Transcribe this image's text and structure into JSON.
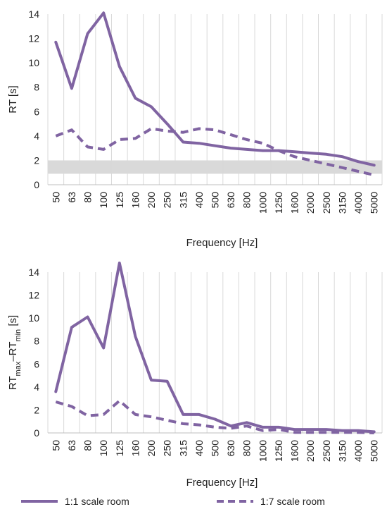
{
  "colors": {
    "series": "#8064a2",
    "band": "#d9d9d9",
    "grid": "#d9d9d9",
    "axis": "#bfbfbf"
  },
  "legend": {
    "solid_label": "1:1 scale room",
    "dashed_label": "1:7 scale room"
  },
  "chart_data": [
    {
      "type": "line",
      "xlabel": "Frequency [Hz]",
      "ylabel": "RT  [s]",
      "ylim": [
        0,
        14
      ],
      "yticks": [
        0,
        2,
        4,
        6,
        8,
        10,
        12,
        14
      ],
      "grid": "vertical",
      "categories": [
        "50",
        "63",
        "80",
        "100",
        "125",
        "160",
        "200",
        "250",
        "315",
        "400",
        "500",
        "630",
        "800",
        "1000",
        "1250",
        "1600",
        "2000",
        "2500",
        "3150",
        "4000",
        "5000"
      ],
      "band": {
        "y_from": 0.9,
        "y_to": 2.0
      },
      "series": [
        {
          "name": "1:1 scale room",
          "style": "solid",
          "values": [
            11.7,
            7.9,
            12.4,
            14.1,
            9.7,
            7.1,
            6.4,
            5.0,
            3.5,
            3.4,
            3.2,
            3.0,
            2.9,
            2.8,
            2.8,
            2.7,
            2.6,
            2.5,
            2.3,
            1.9,
            1.6
          ]
        },
        {
          "name": "1:7 scale room",
          "style": "dashed",
          "values": [
            4.0,
            4.5,
            3.1,
            2.9,
            3.7,
            3.8,
            4.6,
            4.4,
            4.3,
            4.6,
            4.5,
            4.1,
            3.7,
            3.4,
            2.8,
            2.3,
            2.0,
            1.7,
            1.4,
            1.1,
            0.8
          ]
        }
      ]
    },
    {
      "type": "line",
      "xlabel": "Frequency [Hz]",
      "ylabel_parts": [
        "RT",
        "max",
        "–RT",
        "min",
        " [s]"
      ],
      "ylim": [
        0,
        14
      ],
      "yticks": [
        0,
        2,
        4,
        6,
        8,
        10,
        12,
        14
      ],
      "grid": "vertical",
      "categories": [
        "50",
        "63",
        "80",
        "100",
        "125",
        "160",
        "200",
        "250",
        "315",
        "400",
        "500",
        "630",
        "800",
        "1000",
        "1250",
        "1600",
        "2000",
        "2500",
        "3150",
        "4000",
        "5000"
      ],
      "series": [
        {
          "name": "1:1 scale room",
          "style": "solid",
          "values": [
            3.6,
            9.2,
            10.1,
            7.4,
            14.8,
            8.4,
            4.6,
            4.5,
            1.6,
            1.6,
            1.2,
            0.6,
            0.9,
            0.5,
            0.5,
            0.3,
            0.3,
            0.3,
            0.2,
            0.2,
            0.1
          ]
        },
        {
          "name": "1:7 scale room",
          "style": "dashed",
          "values": [
            2.7,
            2.3,
            1.5,
            1.6,
            2.8,
            1.6,
            1.4,
            1.1,
            0.8,
            0.7,
            0.5,
            0.4,
            0.6,
            0.2,
            0.3,
            0.05,
            0.05,
            0.05,
            0.05,
            0.05,
            0.0
          ]
        }
      ]
    }
  ]
}
